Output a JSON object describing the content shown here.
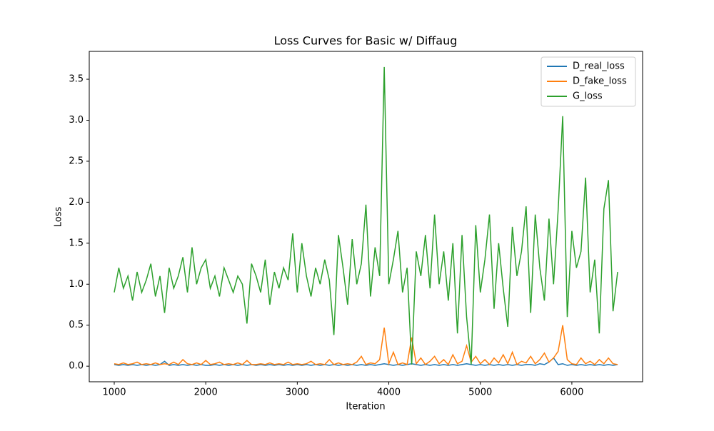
{
  "chart_data": {
    "type": "line",
    "title": "Loss Curves for Basic w/ Diffaug",
    "xlabel": "Iteration",
    "ylabel": "Loss",
    "x": [
      1000,
      1050,
      1100,
      1150,
      1200,
      1250,
      1300,
      1350,
      1400,
      1450,
      1500,
      1550,
      1600,
      1650,
      1700,
      1750,
      1800,
      1850,
      1900,
      1950,
      2000,
      2050,
      2100,
      2150,
      2200,
      2250,
      2300,
      2350,
      2400,
      2450,
      2500,
      2550,
      2600,
      2650,
      2700,
      2750,
      2800,
      2850,
      2900,
      2950,
      3000,
      3050,
      3100,
      3150,
      3200,
      3250,
      3300,
      3350,
      3400,
      3450,
      3500,
      3550,
      3600,
      3650,
      3700,
      3750,
      3800,
      3850,
      3900,
      3950,
      4000,
      4050,
      4100,
      4150,
      4200,
      4250,
      4300,
      4350,
      4400,
      4450,
      4500,
      4550,
      4600,
      4650,
      4700,
      4750,
      4800,
      4850,
      4900,
      4950,
      5000,
      5050,
      5100,
      5150,
      5200,
      5250,
      5300,
      5350,
      5400,
      5450,
      5500,
      5550,
      5600,
      5650,
      5700,
      5750,
      5800,
      5850,
      5900,
      5950,
      6000,
      6050,
      6100,
      6150,
      6200,
      6250,
      6300,
      6350,
      6400,
      6450,
      6500
    ],
    "series": [
      {
        "name": "D_real_loss",
        "color": "#1f77b4",
        "values": [
          0.02,
          0.01,
          0.02,
          0.01,
          0.02,
          0.01,
          0.02,
          0.01,
          0.02,
          0.01,
          0.02,
          0.06,
          0.01,
          0.02,
          0.01,
          0.02,
          0.01,
          0.02,
          0.01,
          0.02,
          0.01,
          0.01,
          0.02,
          0.01,
          0.02,
          0.01,
          0.02,
          0.01,
          0.02,
          0.01,
          0.02,
          0.01,
          0.02,
          0.01,
          0.02,
          0.01,
          0.02,
          0.01,
          0.02,
          0.01,
          0.02,
          0.01,
          0.02,
          0.01,
          0.02,
          0.01,
          0.02,
          0.01,
          0.02,
          0.01,
          0.02,
          0.01,
          0.02,
          0.01,
          0.02,
          0.01,
          0.02,
          0.01,
          0.02,
          0.03,
          0.02,
          0.01,
          0.02,
          0.01,
          0.02,
          0.03,
          0.02,
          0.01,
          0.02,
          0.01,
          0.02,
          0.01,
          0.02,
          0.01,
          0.02,
          0.01,
          0.02,
          0.03,
          0.02,
          0.01,
          0.02,
          0.01,
          0.02,
          0.01,
          0.02,
          0.01,
          0.02,
          0.01,
          0.02,
          0.01,
          0.02,
          0.02,
          0.01,
          0.03,
          0.02,
          0.05,
          0.1,
          0.02,
          0.03,
          0.01,
          0.02,
          0.01,
          0.02,
          0.01,
          0.02,
          0.01,
          0.02,
          0.01,
          0.02,
          0.01,
          0.02
        ]
      },
      {
        "name": "D_fake_loss",
        "color": "#ff7f0e",
        "values": [
          0.03,
          0.02,
          0.04,
          0.02,
          0.03,
          0.05,
          0.02,
          0.03,
          0.02,
          0.04,
          0.02,
          0.03,
          0.02,
          0.05,
          0.02,
          0.08,
          0.03,
          0.02,
          0.04,
          0.02,
          0.07,
          0.02,
          0.03,
          0.05,
          0.02,
          0.03,
          0.02,
          0.04,
          0.02,
          0.07,
          0.02,
          0.02,
          0.03,
          0.02,
          0.04,
          0.02,
          0.03,
          0.02,
          0.05,
          0.02,
          0.03,
          0.02,
          0.03,
          0.06,
          0.02,
          0.03,
          0.02,
          0.08,
          0.02,
          0.04,
          0.02,
          0.03,
          0.02,
          0.05,
          0.12,
          0.02,
          0.04,
          0.03,
          0.08,
          0.47,
          0.03,
          0.17,
          0.02,
          0.04,
          0.02,
          0.35,
          0.03,
          0.1,
          0.02,
          0.06,
          0.12,
          0.03,
          0.08,
          0.02,
          0.14,
          0.03,
          0.06,
          0.25,
          0.05,
          0.12,
          0.03,
          0.08,
          0.02,
          0.1,
          0.04,
          0.14,
          0.03,
          0.17,
          0.02,
          0.06,
          0.04,
          0.12,
          0.03,
          0.08,
          0.16,
          0.05,
          0.1,
          0.18,
          0.5,
          0.08,
          0.03,
          0.02,
          0.1,
          0.03,
          0.06,
          0.02,
          0.08,
          0.03,
          0.1,
          0.03,
          0.02
        ]
      },
      {
        "name": "G_loss",
        "color": "#2ca02c",
        "values": [
          0.9,
          1.2,
          0.95,
          1.1,
          0.8,
          1.15,
          0.9,
          1.05,
          1.25,
          0.85,
          1.1,
          0.65,
          1.2,
          0.95,
          1.1,
          1.33,
          0.9,
          1.45,
          1.0,
          1.2,
          1.3,
          0.95,
          1.1,
          0.85,
          1.2,
          1.05,
          0.9,
          1.1,
          1.0,
          0.52,
          1.25,
          1.1,
          0.9,
          1.3,
          0.75,
          1.15,
          0.95,
          1.2,
          1.05,
          1.62,
          0.9,
          1.5,
          1.1,
          0.85,
          1.2,
          1.0,
          1.3,
          1.05,
          0.38,
          1.6,
          1.2,
          0.75,
          1.55,
          1.0,
          1.25,
          1.97,
          0.85,
          1.45,
          1.1,
          3.65,
          1.0,
          1.3,
          1.65,
          0.9,
          1.2,
          0.02,
          1.4,
          1.1,
          1.6,
          0.95,
          1.85,
          1.0,
          1.4,
          0.8,
          1.5,
          0.4,
          1.6,
          0.6,
          0.02,
          1.72,
          0.9,
          1.3,
          1.85,
          0.7,
          1.5,
          0.95,
          0.48,
          1.7,
          1.1,
          1.4,
          1.95,
          0.65,
          1.85,
          1.2,
          0.8,
          1.8,
          1.0,
          1.9,
          3.05,
          0.6,
          1.65,
          1.2,
          1.4,
          2.3,
          0.9,
          1.3,
          0.4,
          1.92,
          2.27,
          0.67,
          1.15
        ]
      }
    ],
    "xlim": [
      727,
      6773
    ],
    "ylim": [
      -0.19,
      3.84
    ],
    "xticks": [
      1000,
      2000,
      3000,
      4000,
      5000,
      6000
    ],
    "yticks": [
      {
        "value": 0,
        "label": "0.0"
      },
      {
        "value": 0.5,
        "label": "0.5"
      },
      {
        "value": 1,
        "label": "1.0"
      },
      {
        "value": 1.5,
        "label": "1.5"
      },
      {
        "value": 2,
        "label": "2.0"
      },
      {
        "value": 2.5,
        "label": "2.5"
      },
      {
        "value": 3,
        "label": "3.0"
      },
      {
        "value": 3.5,
        "label": "3.5"
      }
    ],
    "legend": "upper right"
  }
}
